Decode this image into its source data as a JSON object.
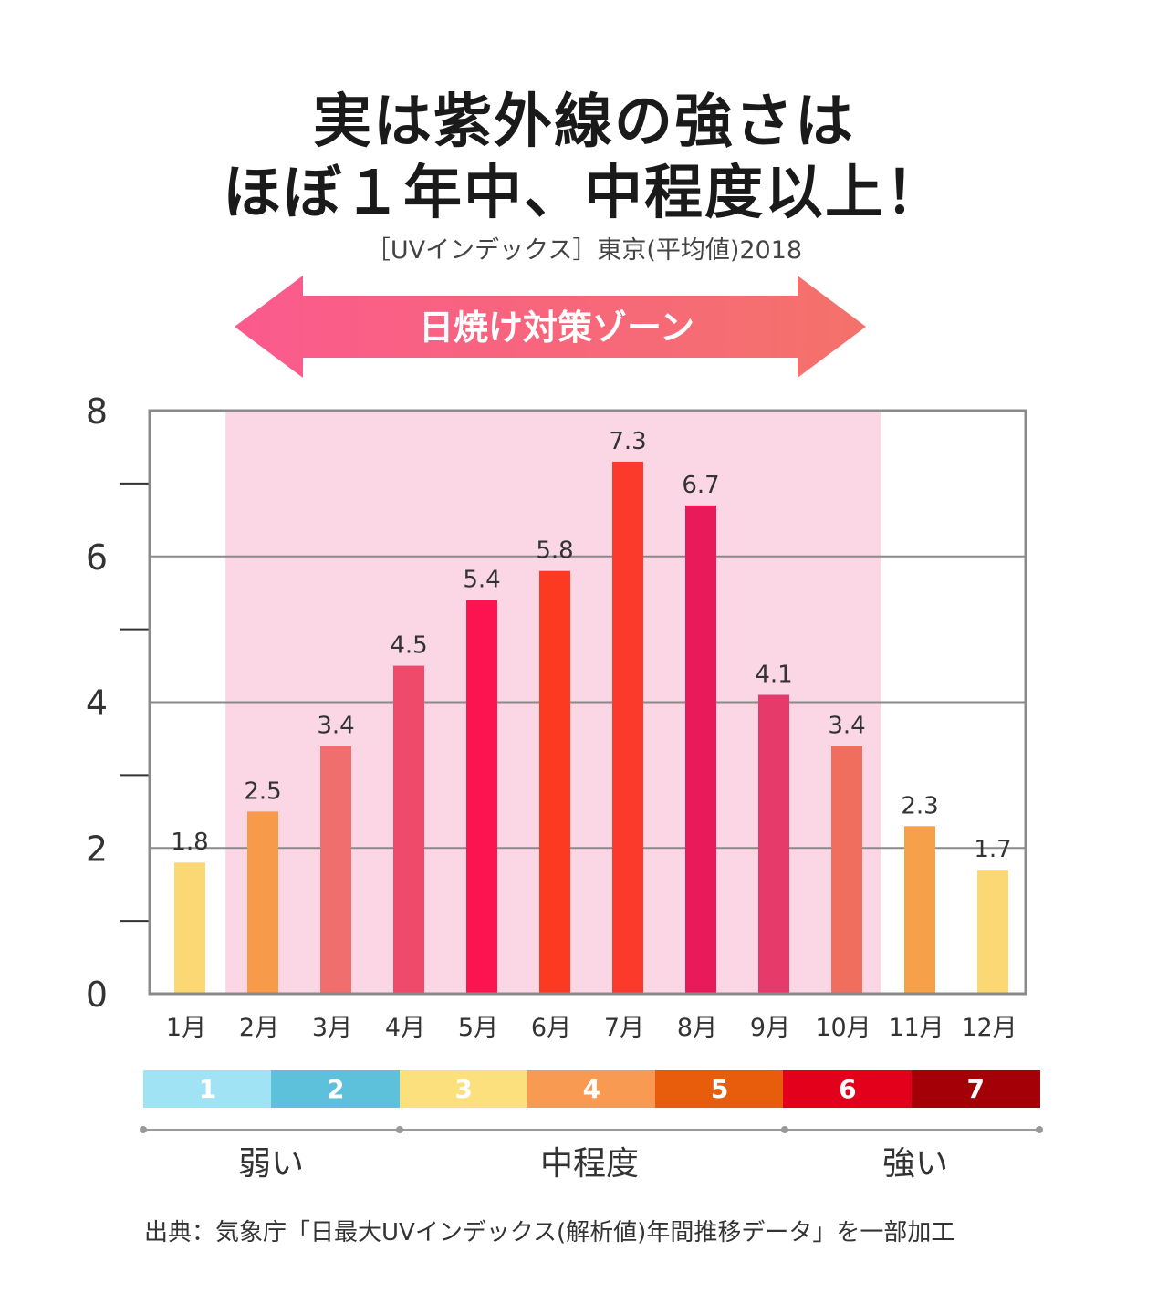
{
  "title_line1": "実は紫外線の強さは",
  "title_line2": "ほぼ１年中、中程度以上！",
  "subtitle": "［UVインデックス］東京(平均値)2018",
  "zone_label": "日焼け対策ゾーン",
  "chart_data": {
    "type": "bar",
    "categories": [
      "1月",
      "2月",
      "3月",
      "4月",
      "5月",
      "6月",
      "7月",
      "8月",
      "9月",
      "10月",
      "11月",
      "12月"
    ],
    "values": [
      1.8,
      2.5,
      3.4,
      4.5,
      5.4,
      5.8,
      7.3,
      6.7,
      4.1,
      3.4,
      2.3,
      1.7
    ],
    "data_labels": [
      "1.8",
      "2.5",
      "3.4",
      "4.5",
      "5.4",
      "5.8",
      "7.3",
      "6.7",
      "4.1",
      "3.4",
      "2.3",
      "1.7"
    ],
    "bar_colors": [
      "#fcd874",
      "#f79a4a",
      "#f06e6e",
      "#ef4a6a",
      "#fb1450",
      "#fc3a22",
      "#fc3a2c",
      "#e81a5a",
      "#e63a6a",
      "#f06e5e",
      "#f7a04a",
      "#fcd874"
    ],
    "ylim": [
      0,
      8
    ],
    "y_ticks": [
      "0",
      "2",
      "4",
      "6",
      "8"
    ],
    "grid": true,
    "highlight_zone": {
      "from": "2月",
      "to": "10月",
      "color": "#fbd6e4"
    }
  },
  "uv_scale": [
    {
      "label": "1",
      "color": "#9fe3f5"
    },
    {
      "label": "2",
      "color": "#5ec1db"
    },
    {
      "label": "3",
      "color": "#fde07e"
    },
    {
      "label": "4",
      "color": "#f89a52"
    },
    {
      "label": "5",
      "color": "#e85d0c"
    },
    {
      "label": "6",
      "color": "#e2001a"
    },
    {
      "label": "7",
      "color": "#a30008"
    }
  ],
  "levels": {
    "weak": "弱い",
    "moderate": "中程度",
    "strong": "強い"
  },
  "source": "出典：気象庁「日最大UVインデックス(解析値)年間推移データ」を一部加工"
}
